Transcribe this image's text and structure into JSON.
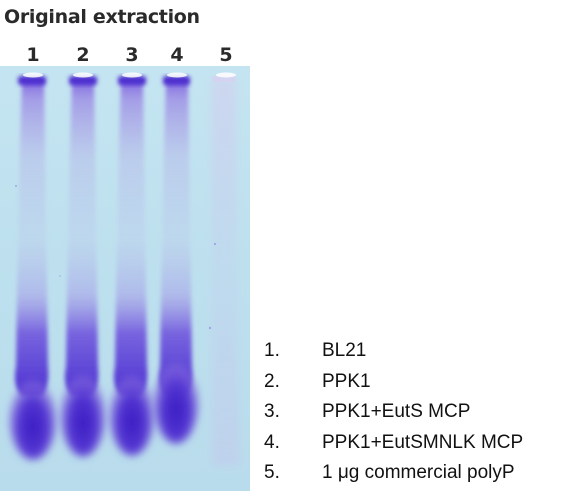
{
  "header": {
    "title": "Original extraction"
  },
  "gel": {
    "lanes": [
      {
        "number": "1",
        "label": "BL21",
        "sample_present": true
      },
      {
        "number": "2",
        "label": "PPK1",
        "sample_present": true
      },
      {
        "number": "3",
        "label": "PPK1+EutS MCP",
        "sample_present": true
      },
      {
        "number": "4",
        "label": "PPK1+EutSMNLK MCP",
        "sample_present": true
      },
      {
        "number": "5",
        "label": "1 μg commercial polyP",
        "sample_present": false
      }
    ],
    "colors": {
      "background": "#bfe2ef",
      "band": "#5a3fd6",
      "band_dark": "#3e22c4",
      "smear": "#a696e6"
    }
  },
  "legend": {
    "items": [
      {
        "num": "1.",
        "text": "BL21"
      },
      {
        "num": "2.",
        "text": "PPK1"
      },
      {
        "num": "3.",
        "text": "PPK1+EutS MCP"
      },
      {
        "num": "4.",
        "text": "PPK1+EutSMNLK MCP"
      },
      {
        "num": "5.",
        "text": "1 μg commercial polyP"
      }
    ]
  }
}
